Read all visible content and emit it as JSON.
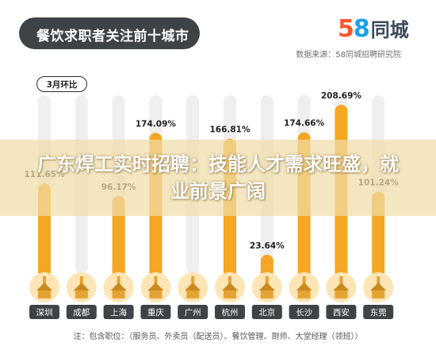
{
  "header": {
    "title": "餐饮求职者关注前十城市",
    "logo_number": "58",
    "logo_text": "同城",
    "source": "数据来源：58同城招聘研究院"
  },
  "overlay": {
    "headline": "广东焊工实时招聘：技能人才需求旺盛，就业前景广阔"
  },
  "footnote": "注：包含职位：（服务员、外卖员（配送员）、餐饮管理、厨师、大堂经理（领班））",
  "colors": {
    "bar": "#f5a623",
    "bar_track": "#efefef",
    "banner": "#3e4348",
    "label_box": "#3e4348",
    "logo_5": "#ff552e",
    "logo_8": "#1aa3e8"
  },
  "chart_data": {
    "type": "bar",
    "title": "餐饮求职者关注前十城市",
    "subtitle": "3月环比",
    "categories": [
      "深圳",
      "成都",
      "上海",
      "重庆",
      "广州",
      "杭州",
      "北京",
      "长沙",
      "西安",
      "东莞"
    ],
    "values": [
      111.65,
      0,
      96.17,
      174.09,
      0,
      166.81,
      23.64,
      174.66,
      208.69,
      101.24
    ],
    "value_labels": [
      "111.65%",
      "",
      "96.17%",
      "174.09%",
      "",
      "166.81%",
      "23.64%",
      "174.66%",
      "208.69%",
      "101.24%"
    ],
    "ylim": [
      0,
      220
    ],
    "grid": false,
    "legend": "none"
  }
}
